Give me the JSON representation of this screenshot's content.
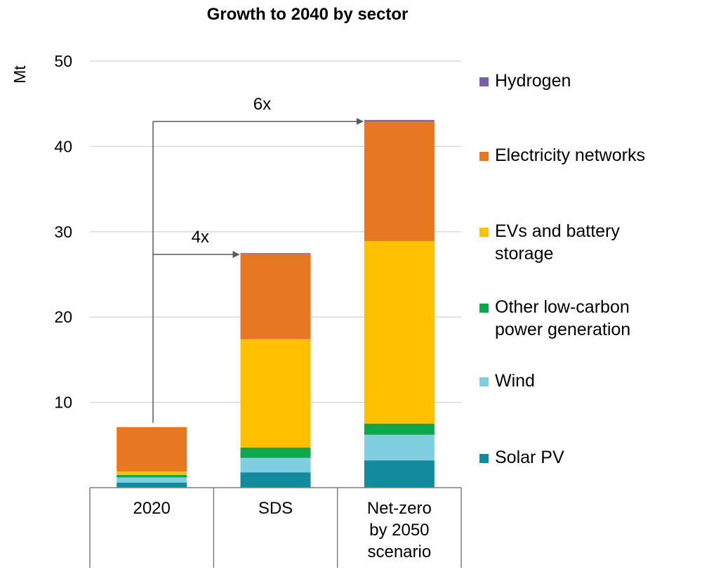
{
  "chart_data": {
    "type": "bar",
    "stacked": true,
    "title": "Growth to 2040 by sector",
    "ylabel": "Mt",
    "xlabel": "",
    "ylim": [
      0,
      50
    ],
    "yticks": [
      10,
      20,
      30,
      40,
      50
    ],
    "grid": true,
    "legend_position": "right",
    "categories": [
      "2020",
      "SDS",
      "Net-zero by 2050 scenario"
    ],
    "category_lines": [
      [
        "2020"
      ],
      [
        "SDS"
      ],
      [
        "Net-zero",
        "by 2050",
        "scenario"
      ]
    ],
    "series": [
      {
        "name": "Solar PV",
        "color": "#138a9e",
        "values": [
          0.6,
          1.8,
          3.2
        ]
      },
      {
        "name": "Wind",
        "color": "#7fcfe1",
        "values": [
          0.6,
          1.7,
          3.0
        ]
      },
      {
        "name": "Other low-carbon power generation",
        "color": "#10a64a",
        "values": [
          0.3,
          1.2,
          1.3
        ]
      },
      {
        "name": "EVs and battery storage",
        "color": "#ffc000",
        "values": [
          0.4,
          12.7,
          21.4
        ]
      },
      {
        "name": "Electricity networks",
        "color": "#e87722",
        "values": [
          5.2,
          10.0,
          14.0
        ]
      },
      {
        "name": "Hydrogen",
        "color": "#7b5ea7",
        "values": [
          0.0,
          0.1,
          0.2
        ]
      }
    ],
    "legend": [
      {
        "lines": [
          "Hydrogen"
        ],
        "color": "#7b5ea7"
      },
      {
        "lines": [
          "Electricity networks"
        ],
        "color": "#e87722"
      },
      {
        "lines": [
          "EVs and battery",
          "storage"
        ],
        "color": "#ffc000"
      },
      {
        "lines": [
          "Other low-carbon",
          "power generation"
        ],
        "color": "#10a64a"
      },
      {
        "lines": [
          "Wind"
        ],
        "color": "#7fcfe1"
      },
      {
        "lines": [
          "Solar PV"
        ],
        "color": "#138a9e"
      }
    ],
    "annotations": [
      {
        "label": "4x",
        "from": "2020",
        "to": "SDS"
      },
      {
        "label": "6x",
        "from": "2020",
        "to": "Net-zero by 2050 scenario"
      }
    ]
  }
}
